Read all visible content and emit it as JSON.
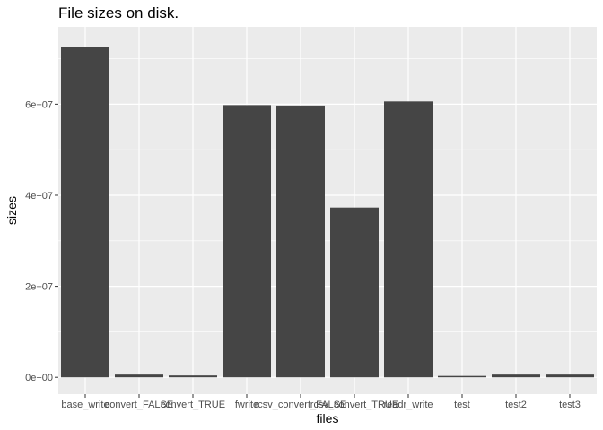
{
  "chart_data": {
    "type": "bar",
    "title": "File sizes on disk.",
    "xlabel": "files",
    "ylabel": "sizes",
    "categories": [
      "base_write",
      "convert_FALSE",
      "convert_TRUE",
      "fwrite",
      "rcsv_convert_FALSE",
      "rcsv_convert_TRUE",
      "readr_write",
      "test",
      "test2",
      "test3"
    ],
    "tick_labels_x": [
      "base_write",
      "convert_FALSE",
      "convert_TRUE",
      "fwrite",
      "rcsv_convert_FALSE",
      "rcsv_convert_TRUE",
      "readr_write",
      "test",
      "test2",
      "test3"
    ],
    "values": [
      72500000,
      600000,
      400000,
      59800000,
      59700000,
      37300000,
      60600000,
      300000,
      600000,
      600000
    ],
    "ylim": [
      -3700000,
      77000000
    ],
    "y_ticks": [
      0,
      20000000,
      40000000,
      60000000
    ],
    "y_tick_labels": [
      "0e+00",
      "2e+07",
      "4e+07",
      "6e+07"
    ],
    "bar_color": "#454545",
    "panel_color": "#ebebeb",
    "grid_color": "#ffffff",
    "grid": true,
    "legend": "none"
  }
}
